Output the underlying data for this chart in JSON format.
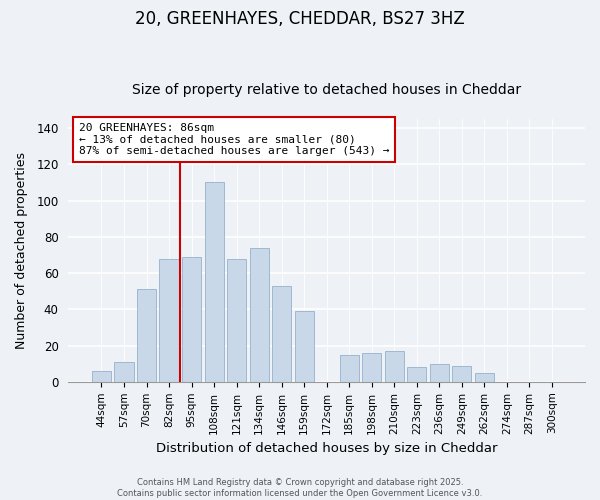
{
  "title": "20, GREENHAYES, CHEDDAR, BS27 3HZ",
  "subtitle": "Size of property relative to detached houses in Cheddar",
  "xlabel": "Distribution of detached houses by size in Cheddar",
  "ylabel": "Number of detached properties",
  "bar_labels": [
    "44sqm",
    "57sqm",
    "70sqm",
    "82sqm",
    "95sqm",
    "108sqm",
    "121sqm",
    "134sqm",
    "146sqm",
    "159sqm",
    "172sqm",
    "185sqm",
    "198sqm",
    "210sqm",
    "223sqm",
    "236sqm",
    "249sqm",
    "262sqm",
    "274sqm",
    "287sqm",
    "300sqm"
  ],
  "bar_heights": [
    6,
    11,
    51,
    68,
    69,
    110,
    68,
    74,
    53,
    39,
    0,
    15,
    16,
    17,
    8,
    10,
    9,
    5,
    0,
    0,
    0
  ],
  "bar_color": "#c8d8e8",
  "bar_edge_color": "#a0b8d0",
  "vline_x_index": 3,
  "vline_color": "#cc0000",
  "ylim": [
    0,
    145
  ],
  "yticks": [
    0,
    20,
    40,
    60,
    80,
    100,
    120,
    140
  ],
  "annotation_title": "20 GREENHAYES: 86sqm",
  "annotation_line1": "← 13% of detached houses are smaller (80)",
  "annotation_line2": "87% of semi-detached houses are larger (543) →",
  "annotation_box_color": "#ffffff",
  "annotation_box_edge": "#cc0000",
  "footer_line1": "Contains HM Land Registry data © Crown copyright and database right 2025.",
  "footer_line2": "Contains public sector information licensed under the Open Government Licence v3.0.",
  "background_color": "#eef2f7",
  "title_fontsize": 12,
  "subtitle_fontsize": 10,
  "xlabel_fontsize": 9.5,
  "ylabel_fontsize": 9
}
